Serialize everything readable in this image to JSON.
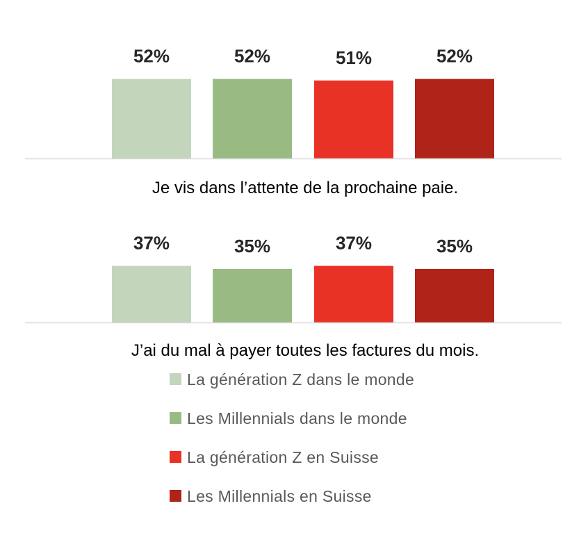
{
  "chart_data": {
    "type": "bar",
    "series": [
      {
        "name": "La génération Z dans le monde",
        "color": "#c3d6bb"
      },
      {
        "name": "Les Millennials dans le monde",
        "color": "#99bb83"
      },
      {
        "name": "La génération Z en Suisse",
        "color": "#e83226"
      },
      {
        "name": "Les Millennials en Suisse",
        "color": "#af2318"
      }
    ],
    "panels": [
      {
        "category": "Je vis dans l’attente de la prochaine paie.",
        "values": [
          52,
          52,
          51,
          52
        ],
        "labels": [
          "52%",
          "52%",
          "51%",
          "52%"
        ]
      },
      {
        "category": "J’ai du mal à payer toutes les factures du mois.",
        "values": [
          37,
          35,
          37,
          35
        ],
        "labels": [
          "37%",
          "35%",
          "37%",
          "35%"
        ]
      }
    ],
    "unit": "%",
    "grid": false,
    "legend_position": "bottom"
  }
}
